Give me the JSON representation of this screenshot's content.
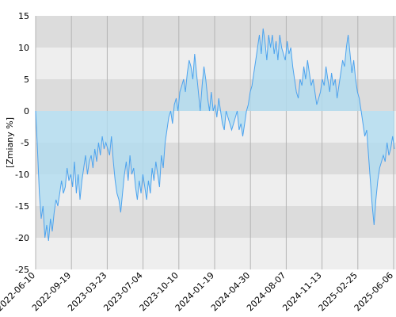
{
  "chart_data": {
    "type": "area",
    "ylabel": "[Zmiany %]",
    "ylim": [
      -25,
      15
    ],
    "y_ticks": [
      15,
      10,
      5,
      0,
      -5,
      -10,
      -15,
      -20,
      -25
    ],
    "x_ticks": [
      "2022-06-10",
      "2022-09-19",
      "2023-03-23",
      "2023-07-04",
      "2023-10-10",
      "2024-01-19",
      "2024-04-30",
      "2024-08-07",
      "2024-11-13",
      "2025-02-25",
      "2025-06-06"
    ],
    "grid": true,
    "colors": {
      "line": "#4da3ee",
      "fill": "#b0dcf0",
      "band_dark": "#dcdcdc",
      "band_light": "#eeeeee",
      "vgrid": "#b4b4b4"
    },
    "series": [
      {
        "values": [
          0,
          -6,
          -13,
          -17,
          -15,
          -20,
          -18,
          -20.5,
          -17,
          -19,
          -16,
          -14,
          -15,
          -13,
          -11,
          -13,
          -12,
          -9,
          -11,
          -10,
          -12,
          -8,
          -13,
          -10,
          -14,
          -11,
          -9,
          -7,
          -10,
          -8,
          -7,
          -9,
          -6,
          -8,
          -5,
          -7,
          -4,
          -6,
          -5,
          -6,
          -7,
          -4,
          -8,
          -11,
          -13,
          -14,
          -16,
          -13,
          -10,
          -8,
          -11,
          -7,
          -10,
          -9,
          -12,
          -14,
          -11,
          -13,
          -10,
          -12,
          -14,
          -11,
          -13,
          -9,
          -11,
          -8,
          -10,
          -12,
          -7,
          -9,
          -5,
          -3,
          -1,
          0,
          -2,
          1,
          2,
          0,
          3,
          4,
          5,
          3,
          6,
          8,
          7,
          5,
          9,
          6,
          3,
          0,
          4,
          7,
          5,
          2,
          0,
          3,
          0,
          1,
          -1,
          2,
          0,
          -2,
          -3,
          0,
          -1,
          -2,
          -3,
          -2,
          -1,
          0,
          -3,
          -2,
          -4,
          -2,
          0,
          1,
          3,
          4,
          6,
          8,
          10,
          12,
          9,
          13,
          11,
          8,
          12,
          10,
          12,
          9,
          11,
          8,
          12,
          10,
          9,
          8,
          11,
          9,
          10,
          7,
          5,
          3,
          2,
          5,
          4,
          7,
          5,
          8,
          6,
          4,
          5,
          3,
          1,
          2,
          3,
          5,
          4,
          7,
          5,
          3,
          6,
          4,
          5,
          2,
          4,
          6,
          8,
          7,
          10,
          12,
          9,
          6,
          8,
          5,
          3,
          2,
          0,
          -2,
          -4,
          -3,
          -7,
          -11,
          -15,
          -18,
          -14,
          -11,
          -9,
          -8,
          -7,
          -8,
          -5,
          -7,
          -6,
          -4,
          -6
        ]
      }
    ]
  }
}
